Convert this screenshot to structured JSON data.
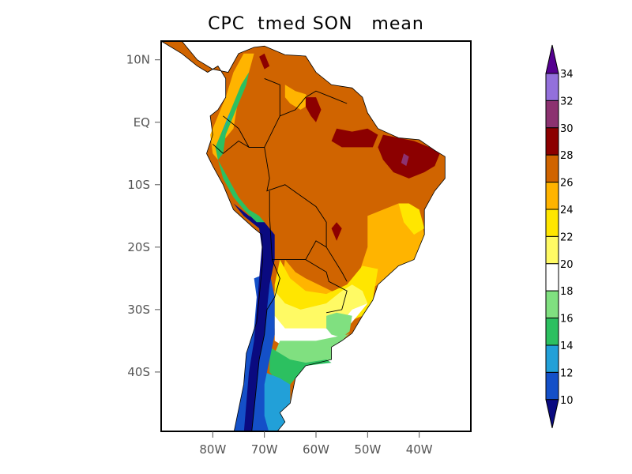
{
  "title": "CPC  tmed SON   mean",
  "map": {
    "region": "South America",
    "variable": "tmed",
    "season": "SON",
    "statistic": "mean",
    "lat_ticks": [
      "10N",
      "EQ",
      "10S",
      "20S",
      "30S",
      "40S"
    ],
    "lon_ticks": [
      "80W",
      "70W",
      "60W",
      "50W",
      "40W"
    ],
    "lat_values": [
      10,
      0,
      -10,
      -20,
      -30,
      -40
    ],
    "lon_values": [
      -80,
      -70,
      -60,
      -50,
      -40
    ],
    "lat_range": [
      -49.5,
      13
    ],
    "lon_range": [
      -90,
      -30
    ]
  },
  "colorbar": {
    "levels": [
      "10",
      "12",
      "14",
      "16",
      "18",
      "20",
      "22",
      "24",
      "26",
      "28",
      "30",
      "32",
      "34"
    ],
    "colors": [
      "#0a0a80",
      "#1450c8",
      "#22a0d8",
      "#2cc060",
      "#80e080",
      "#ffffff",
      "#fffa64",
      "#ffe600",
      "#ffb400",
      "#d06400",
      "#8c0000",
      "#8c3270",
      "#9370db",
      "#550090"
    ]
  }
}
